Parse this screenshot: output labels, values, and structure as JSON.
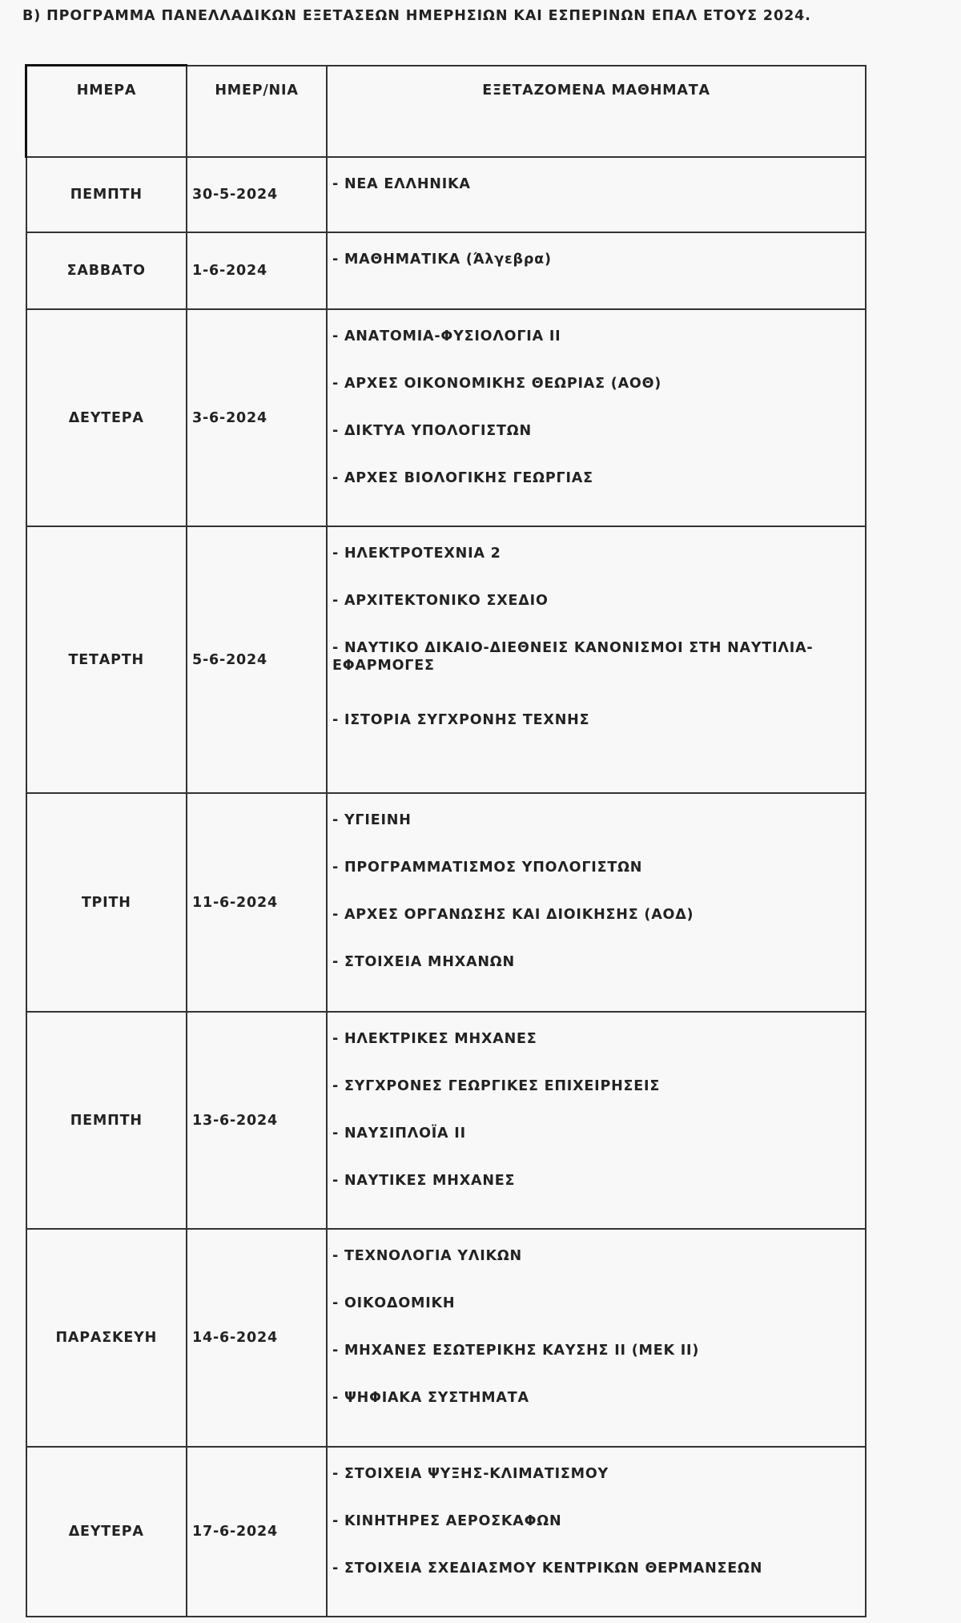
{
  "title": "Β) ΠΡΟΓΡΑΜΜΑ ΠΑΝΕΛΛΑΔΙΚΩΝ ΕΞΕΤΑΣΕΩΝ ΗΜΕΡΗΣΙΩΝ ΚΑΙ ΕΣΠΕΡΙΝΩΝ ΕΠΑΛ ΕΤΟΥΣ 2024.",
  "headers": [
    "ΗΜΕΡΑ",
    "ΗΜΕΡ/ΝΙΑ",
    "ΕΞΕΤΑΖΟΜΕΝΑ ΜΑΘΗΜΑΤΑ"
  ],
  "rows": [
    {
      "day": "ΠΕΜΠΤΗ",
      "date": "30-5-2024",
      "subjects": [
        "- ΝΕΑ ΕΛΛΗΝΙΚΑ"
      ]
    },
    {
      "day": "ΣΑΒΒΑΤΟ",
      "date": "1-6-2024",
      "subjects": [
        "- ΜΑΘΗΜΑΤΙΚΑ (Άλγεβρα)"
      ]
    },
    {
      "day": "ΔΕΥΤΕΡΑ",
      "date": "3-6-2024",
      "subjects": [
        "- ΑΝΑΤΟΜΙΑ-ΦΥΣΙΟΛΟΓΙΑ ΙΙ",
        "- ΑΡΧΕΣ ΟΙΚΟΝΟΜΙΚΗΣ ΘΕΩΡΙΑΣ (ΑΟΘ)",
        "- ΔΙΚΤΥΑ ΥΠΟΛΟΓΙΣΤΩΝ",
        "- ΑΡΧΕΣ ΒΙΟΛΟΓΙΚΗΣ ΓΕΩΡΓΙΑΣ"
      ]
    },
    {
      "day": "ΤΕΤΑΡΤΗ",
      "date": "5-6-2024",
      "subjects": [
        "- ΗΛΕΚΤΡΟΤΕΧΝΙΑ 2",
        "- ΑΡΧΙΤΕΚΤΟΝΙΚΟ ΣΧΕΔΙΟ",
        "- ΝΑΥΤΙΚΟ ΔΙΚΑΙΟ-ΔΙΕΘΝΕΙΣ ΚΑΝΟΝΙΣΜΟΙ ΣΤΗ ΝΑΥΤΙΛΙΑ-ΕΦΑΡΜΟΓΕΣ",
        "- ΙΣΤΟΡΙΑ ΣΥΓΧΡΟΝΗΣ ΤΕΧΝΗΣ"
      ]
    },
    {
      "day": "ΤΡΙΤΗ",
      "date": "11-6-2024",
      "subjects": [
        "- ΥΓΙΕΙΝΗ",
        "- ΠΡΟΓΡΑΜΜΑΤΙΣΜΟΣ ΥΠΟΛΟΓΙΣΤΩΝ",
        "- ΑΡΧΕΣ ΟΡΓΑΝΩΣΗΣ ΚΑΙ ΔΙΟΙΚΗΣΗΣ (ΑΟΔ)",
        "- ΣΤΟΙΧΕΙΑ ΜΗΧΑΝΩΝ"
      ]
    },
    {
      "day": "ΠΕΜΠΤΗ",
      "date": "13-6-2024",
      "subjects": [
        "- ΗΛΕΚΤΡΙΚΕΣ ΜΗΧΑΝΕΣ",
        "- ΣΥΓΧΡΟΝΕΣ ΓΕΩΡΓΙΚΕΣ ΕΠΙΧΕΙΡΗΣΕΙΣ",
        "- ΝΑΥΣΙΠΛΟΪΑ ΙΙ",
        "- ΝΑΥΤΙΚΕΣ ΜΗΧΑΝΕΣ"
      ]
    },
    {
      "day": "ΠΑΡΑΣΚΕΥΗ",
      "date": "14-6-2024",
      "subjects": [
        "- ΤΕΧΝΟΛΟΓΙΑ ΥΛΙΚΩΝ",
        "- ΟΙΚΟΔΟΜΙΚΗ",
        "- ΜΗΧΑΝΕΣ ΕΣΩΤΕΡΙΚΗΣ ΚΑΥΣΗΣ ΙΙ (ΜΕΚ ΙΙ)",
        "- ΨΗΦΙΑΚΑ ΣΥΣΤΗΜΑΤΑ"
      ]
    },
    {
      "day": "ΔΕΥΤΕΡΑ",
      "date": "17-6-2024",
      "subjects": [
        "- ΣΤΟΙΧΕΙΑ ΨΥΞΗΣ-ΚΛΙΜΑΤΙΣΜΟΥ",
        "- ΚΙΝΗΤΗΡΕΣ ΑΕΡΟΣΚΑΦΩΝ",
        "- ΣΤΟΙΧΕΙΑ ΣΧΕΔΙΑΣΜΟΥ ΚΕΝΤΡΙΚΩΝ ΘΕΡΜΑΝΣΕΩΝ"
      ]
    }
  ]
}
